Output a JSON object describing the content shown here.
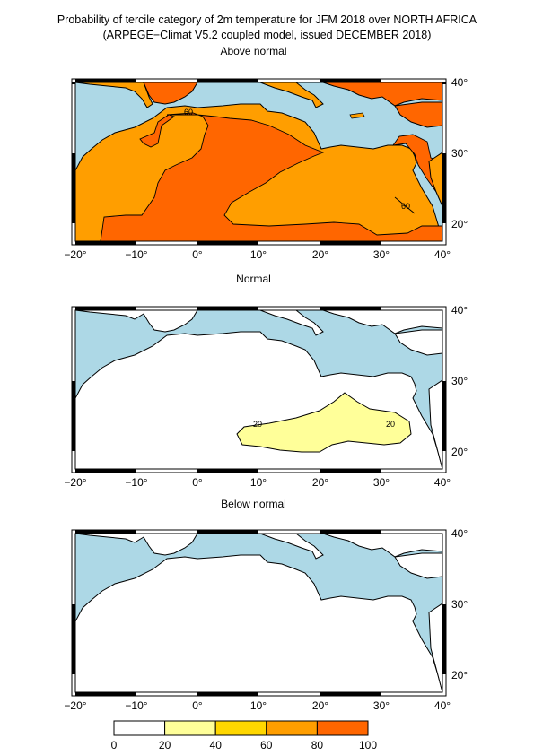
{
  "title": {
    "line1": "Probability of tercile category of 2m temperature for JFM 2018 over NORTH AFRICA",
    "line2": "(ARPEGE−Climat V5.2 coupled model, issued DECEMBER  2018)"
  },
  "panels": [
    {
      "label": "Above normal",
      "contours": [
        "60",
        "60"
      ]
    },
    {
      "label": "Normal",
      "contours": [
        "20",
        "20"
      ]
    },
    {
      "label": "Below normal",
      "contours": []
    }
  ],
  "axes": {
    "lon_ticks": [
      "−20°",
      "−10°",
      "0°",
      "10°",
      "20°",
      "30°",
      "40°"
    ],
    "lat_ticks": [
      "40°",
      "30°",
      "20°"
    ],
    "lon_range": [
      -20,
      40
    ],
    "lat_range": [
      18,
      41
    ]
  },
  "legend": {
    "ticks": [
      "0",
      "20",
      "40",
      "60",
      "80",
      "100"
    ],
    "colors": [
      "#ffffff",
      "#ffff99",
      "#ffd700",
      "#ff9e00",
      "#ff6600"
    ]
  },
  "colors": {
    "sea": "#add8e6",
    "land": "#ffffff",
    "above_low": "#ff9e00",
    "above_high": "#ff6600",
    "normal_band": "#ffff99"
  }
}
